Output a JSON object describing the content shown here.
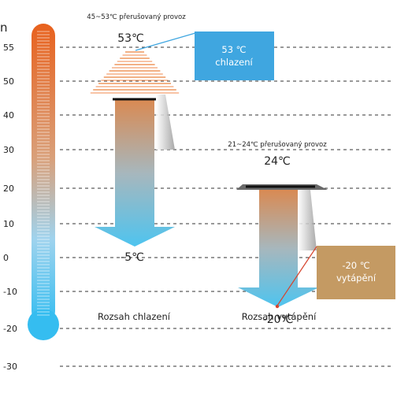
{
  "scale": {
    "ticks": [
      "55",
      "50",
      "40",
      "30",
      "20",
      "10",
      "0",
      "-10",
      "-20",
      "-30"
    ],
    "values": [
      55,
      50,
      40,
      30,
      20,
      10,
      0,
      -10,
      -20,
      -30
    ],
    "corner_mark": "n"
  },
  "cooling": {
    "range_note": "45~53℃ přerušovaný provoz",
    "max_label": "53℃",
    "min_label": "-5℃",
    "box_line1": "53 ℃",
    "box_line2": "chlazení",
    "box_color": "#3fa6e0",
    "range": [
      -5,
      53
    ],
    "intermittent": [
      45,
      53
    ],
    "legend": "Rozsah chlazení",
    "legend_color": "#2e7fc4"
  },
  "heating": {
    "range_note": "21~24℃ přerušovaný provoz",
    "max_label": "24℃",
    "min_label": "-20℃",
    "box_line1": "-20  ℃",
    "box_line2": "vytápění",
    "box_color": "#c49a63",
    "range": [
      -20,
      24
    ],
    "intermittent": [
      21,
      24
    ],
    "legend": "Rozsah vytápění",
    "legend_color": "#d6452e"
  },
  "colors": {
    "hot": "#e8611d",
    "cold": "#35bdf0",
    "arrow_top": "#d98a53",
    "arrow_bottom": "#4ec4ef"
  }
}
